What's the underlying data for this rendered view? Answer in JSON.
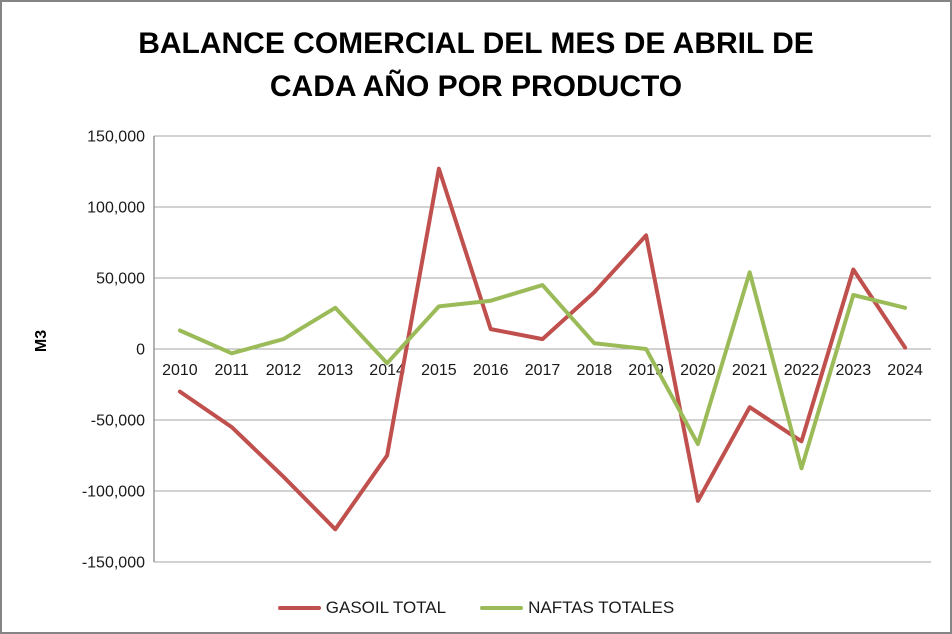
{
  "chart_data": {
    "type": "line",
    "title": "BALANCE COMERCIAL DEL MES DE ABRIL DE CADA AÑO POR PRODUCTO",
    "title_lines": [
      "BALANCE COMERCIAL DEL MES DE ABRIL DE",
      "CADA AÑO POR PRODUCTO"
    ],
    "ylabel": "M3",
    "xlabel": "",
    "categories": [
      "2010",
      "2011",
      "2012",
      "2013",
      "2014",
      "2015",
      "2016",
      "2017",
      "2018",
      "2019",
      "2020",
      "2021",
      "2022",
      "2023",
      "2024"
    ],
    "series": [
      {
        "name": "GASOIL TOTAL",
        "color": "#C0504D",
        "values": [
          -30000,
          -55000,
          -90000,
          -127000,
          -75000,
          127000,
          14000,
          7000,
          40000,
          80000,
          -107000,
          -41000,
          -65000,
          56000,
          1000
        ]
      },
      {
        "name": "NAFTAS TOTALES",
        "color": "#9BBB59",
        "values": [
          13000,
          -3000,
          7000,
          29000,
          -10000,
          30000,
          34000,
          45000,
          4000,
          0,
          -67000,
          54000,
          -84000,
          38000,
          29000
        ]
      }
    ],
    "ylim": [
      -150000,
      150000
    ],
    "ytick_step": 50000,
    "y_tick_labels": [
      "150,000",
      "100,000",
      "50,000",
      "0",
      "-50,000",
      "-100,000",
      "-150,000"
    ],
    "grid": true,
    "legend_position": "bottom"
  }
}
